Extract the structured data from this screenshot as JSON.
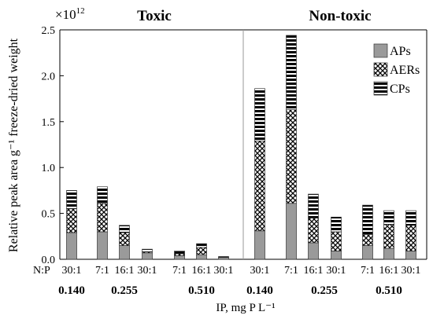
{
  "chart_data": {
    "type": "bar",
    "stacked": true,
    "ylabel": "Relative peak area g⁻¹ freeze-dried weight",
    "xlabel": "IP, mg P L⁻¹",
    "y_multiplier": "×10",
    "y_multiplier_exp": "12",
    "ylim": [
      0,
      2.5
    ],
    "yticks": [
      "0.0",
      "0.5",
      "1.0",
      "1.5",
      "2.0",
      "2.5"
    ],
    "ytick_values": [
      0,
      0.5,
      1.0,
      1.5,
      2.0,
      2.5
    ],
    "panels": [
      {
        "title": "Toxic",
        "position": "left"
      },
      {
        "title": "Non-toxic",
        "position": "right"
      }
    ],
    "np_row_label": "N:P",
    "categories": [
      {
        "panel": "Toxic",
        "np": "30:1",
        "ip": "0.140"
      },
      {
        "panel": "Toxic",
        "np": "7:1",
        "ip": "0.255"
      },
      {
        "panel": "Toxic",
        "np": "16:1",
        "ip": "0.255"
      },
      {
        "panel": "Toxic",
        "np": "30:1",
        "ip": "0.255"
      },
      {
        "panel": "Toxic",
        "np": "7:1",
        "ip": "0.510"
      },
      {
        "panel": "Toxic",
        "np": "16:1",
        "ip": "0.510"
      },
      {
        "panel": "Toxic",
        "np": "30:1",
        "ip": "0.510"
      },
      {
        "panel": "Non-toxic",
        "np": "30:1",
        "ip": "0.140"
      },
      {
        "panel": "Non-toxic",
        "np": "7:1",
        "ip": "0.255"
      },
      {
        "panel": "Non-toxic",
        "np": "16:1",
        "ip": "0.255"
      },
      {
        "panel": "Non-toxic",
        "np": "30:1",
        "ip": "0.255"
      },
      {
        "panel": "Non-toxic",
        "np": "7:1",
        "ip": "0.510"
      },
      {
        "panel": "Non-toxic",
        "np": "16:1",
        "ip": "0.510"
      },
      {
        "panel": "Non-toxic",
        "np": "30:1",
        "ip": "0.510"
      }
    ],
    "ip_group_labels": [
      {
        "label": "0.140",
        "panel": "Toxic"
      },
      {
        "label": "0.255",
        "panel": "Toxic"
      },
      {
        "label": "0.510",
        "panel": "Toxic"
      },
      {
        "label": "0.140",
        "panel": "Non-toxic"
      },
      {
        "label": "0.255",
        "panel": "Non-toxic"
      },
      {
        "label": "0.510",
        "panel": "Non-toxic"
      }
    ],
    "series": [
      {
        "name": "APs",
        "pattern": "solid-gray",
        "color": "#9a9a9a",
        "values": [
          0.29,
          0.3,
          0.15,
          0.07,
          0.04,
          0.05,
          0.02,
          0.31,
          0.61,
          0.18,
          0.09,
          0.15,
          0.12,
          0.09
        ]
      },
      {
        "name": "AERs",
        "pattern": "crosshatch",
        "values": [
          0.26,
          0.31,
          0.14,
          0.01,
          0.02,
          0.08,
          0.0,
          0.98,
          1.02,
          0.27,
          0.21,
          0.12,
          0.26,
          0.28
        ]
      },
      {
        "name": "CPs",
        "pattern": "horizontal-stripes",
        "values": [
          0.2,
          0.18,
          0.08,
          0.03,
          0.03,
          0.04,
          0.01,
          0.57,
          0.81,
          0.26,
          0.16,
          0.32,
          0.15,
          0.16
        ]
      }
    ],
    "legend_position": "top-right",
    "grid": false
  }
}
